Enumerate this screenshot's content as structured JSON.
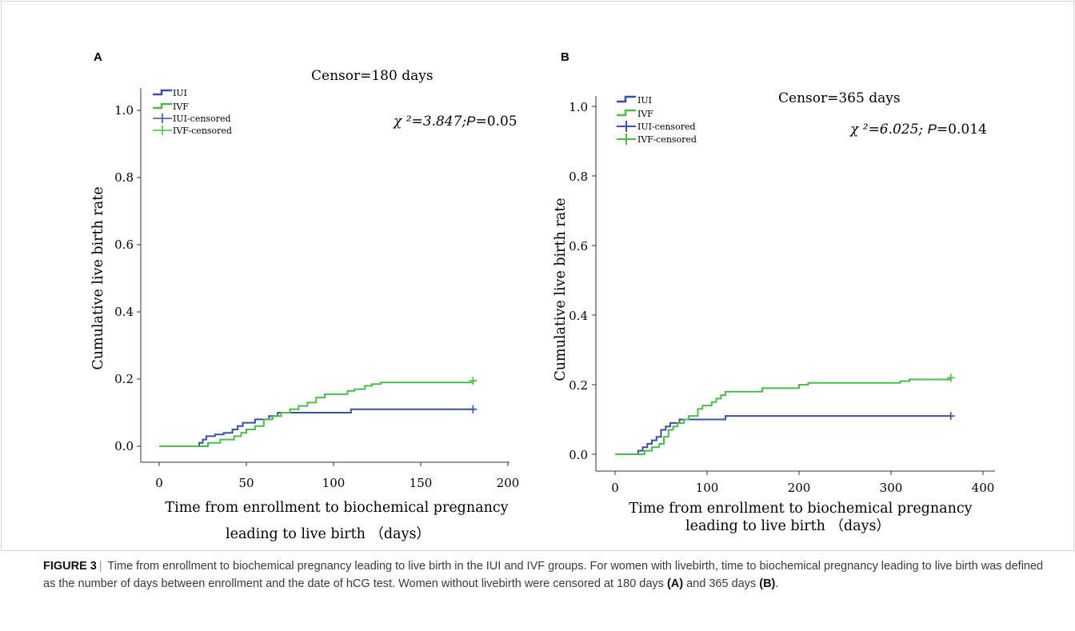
{
  "colors": {
    "iui": "#3d4ea8",
    "ivf": "#4dba4d",
    "axis": "#333333"
  },
  "charts": [
    {
      "panel": "A",
      "title": "Censor=180 days",
      "xlabel_line1": "Time from enrollment to biochemical pregnancy",
      "xlabel_line2": "leading to live birth （days）",
      "ylabel": "Cumulative live birth rate",
      "xticks": [
        "0",
        "50",
        "100",
        "150",
        "200"
      ],
      "yticks": [
        "0.0",
        "0.2",
        "0.4",
        "0.6",
        "0.8",
        "1.0"
      ],
      "legend": [
        "IUI",
        "IVF",
        "IUI-censored",
        "IVF-censored"
      ],
      "stat_chi": "χ ²=3.847;",
      "stat_p_label": "P",
      "stat_p_value": "=0.05"
    },
    {
      "panel": "B",
      "title": "Censor=365 days",
      "xlabel_line1": "Time from enrollment to biochemical pregnancy",
      "xlabel_line2": "leading to live birth （days）",
      "ylabel": "Cumulative live birth rate",
      "xticks": [
        "0",
        "100",
        "200",
        "300",
        "400"
      ],
      "yticks": [
        "0.0",
        "0.2",
        "0.4",
        "0.6",
        "0.8",
        "1.0"
      ],
      "legend": [
        "IUI",
        "IVF",
        "IUI-censored",
        "IVF-censored"
      ],
      "stat_chi": "χ ²=6.025; ",
      "stat_p_label": "P",
      "stat_p_value": "=0.014"
    }
  ],
  "chart_data": [
    {
      "type": "line",
      "panel": "A",
      "title": "Censor=180 days",
      "xlabel": "Time from enrollment to biochemical pregnancy leading to live birth （days）",
      "ylabel": "Cumulative live birth rate",
      "xlim": [
        0,
        200
      ],
      "ylim": [
        0,
        1.0
      ],
      "grid": false,
      "legend": "top-left",
      "step": true,
      "series": [
        {
          "name": "IUI",
          "color": "#3d4ea8",
          "x": [
            0,
            21,
            23,
            25,
            27,
            32,
            37,
            42,
            45,
            48,
            55,
            63,
            68,
            105,
            110,
            180
          ],
          "y": [
            0,
            0,
            0.01,
            0.02,
            0.03,
            0.035,
            0.04,
            0.05,
            0.06,
            0.07,
            0.08,
            0.09,
            0.1,
            0.1,
            0.11,
            0.11
          ],
          "censored": [
            [
              180,
              0.11
            ]
          ]
        },
        {
          "name": "IVF",
          "color": "#4dba4d",
          "x": [
            0,
            25,
            28,
            35,
            43,
            47,
            50,
            55,
            60,
            65,
            70,
            75,
            80,
            85,
            90,
            95,
            100,
            108,
            112,
            118,
            122,
            127,
            180
          ],
          "y": [
            0,
            0,
            0.01,
            0.02,
            0.03,
            0.04,
            0.05,
            0.06,
            0.08,
            0.09,
            0.1,
            0.11,
            0.12,
            0.13,
            0.145,
            0.155,
            0.155,
            0.165,
            0.17,
            0.18,
            0.185,
            0.19,
            0.195
          ],
          "censored": [
            [
              180,
              0.195
            ]
          ]
        }
      ],
      "annotation": "χ ²=3.847;P=0.05"
    },
    {
      "type": "line",
      "panel": "B",
      "title": "Censor=365 days",
      "xlabel": "Time from enrollment to biochemical pregnancy leading to live birth （days）",
      "ylabel": "Cumulative live birth rate",
      "xlim": [
        0,
        400
      ],
      "ylim": [
        0,
        1.0
      ],
      "grid": false,
      "legend": "top-left",
      "step": true,
      "series": [
        {
          "name": "IUI",
          "color": "#3d4ea8",
          "x": [
            0,
            22,
            25,
            30,
            35,
            40,
            45,
            50,
            55,
            60,
            70,
            115,
            120,
            365
          ],
          "y": [
            0,
            0,
            0.01,
            0.02,
            0.03,
            0.04,
            0.05,
            0.07,
            0.08,
            0.09,
            0.1,
            0.1,
            0.11,
            0.11
          ],
          "censored": [
            [
              365,
              0.11
            ]
          ]
        },
        {
          "name": "IVF",
          "color": "#4dba4d",
          "x": [
            0,
            27,
            32,
            40,
            48,
            53,
            58,
            63,
            68,
            75,
            80,
            90,
            95,
            105,
            110,
            115,
            120,
            160,
            200,
            210,
            310,
            320,
            365
          ],
          "y": [
            0,
            0,
            0.01,
            0.02,
            0.03,
            0.05,
            0.07,
            0.08,
            0.09,
            0.1,
            0.11,
            0.13,
            0.14,
            0.15,
            0.16,
            0.17,
            0.18,
            0.19,
            0.2,
            0.205,
            0.21,
            0.215,
            0.22
          ],
          "censored": [
            [
              365,
              0.22
            ]
          ]
        }
      ],
      "annotation": "χ ²=6.025; P=0.014"
    }
  ],
  "caption": {
    "label": "FIGURE 3",
    "separator": "|",
    "text_1": " Time from enrollment to biochemical pregnancy leading to live birth in the IUI and IVF groups. For women with livebirth, time to biochemical pregnancy leading to live birth was defined as the number of days between enrollment and the date of hCG test. Women without livebirth were censored at 180 days ",
    "ref_a": "(A)",
    "text_2": " and 365 days ",
    "ref_b": "(B)",
    "text_3": "."
  }
}
